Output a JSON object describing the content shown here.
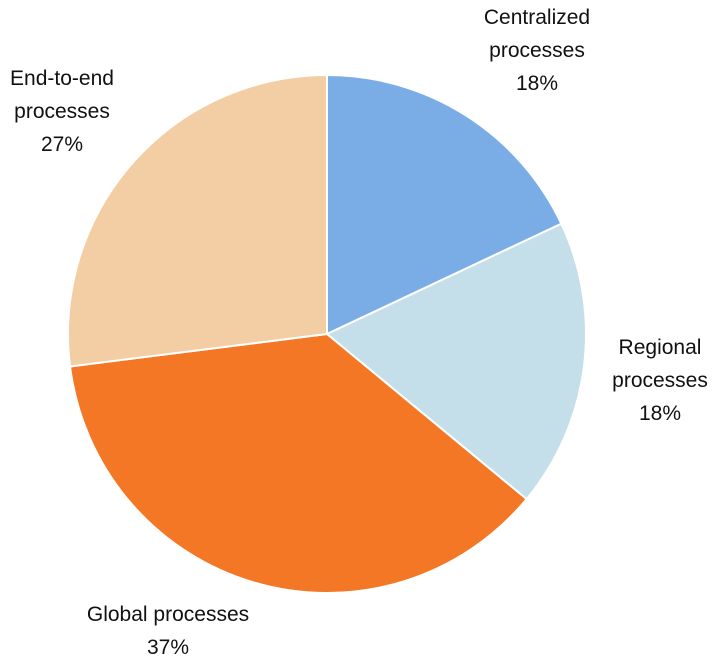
{
  "chart_data": {
    "type": "pie",
    "categories": [
      "Centralized processes",
      "Regional processes",
      "Global processes",
      "End-to-end processes"
    ],
    "values": [
      18,
      18,
      37,
      27
    ],
    "value_labels": [
      "18%",
      "18%",
      "37%",
      "27%"
    ],
    "colors": [
      "#7aade6",
      "#c5dfea",
      "#f47726",
      "#f3cea4"
    ]
  }
}
